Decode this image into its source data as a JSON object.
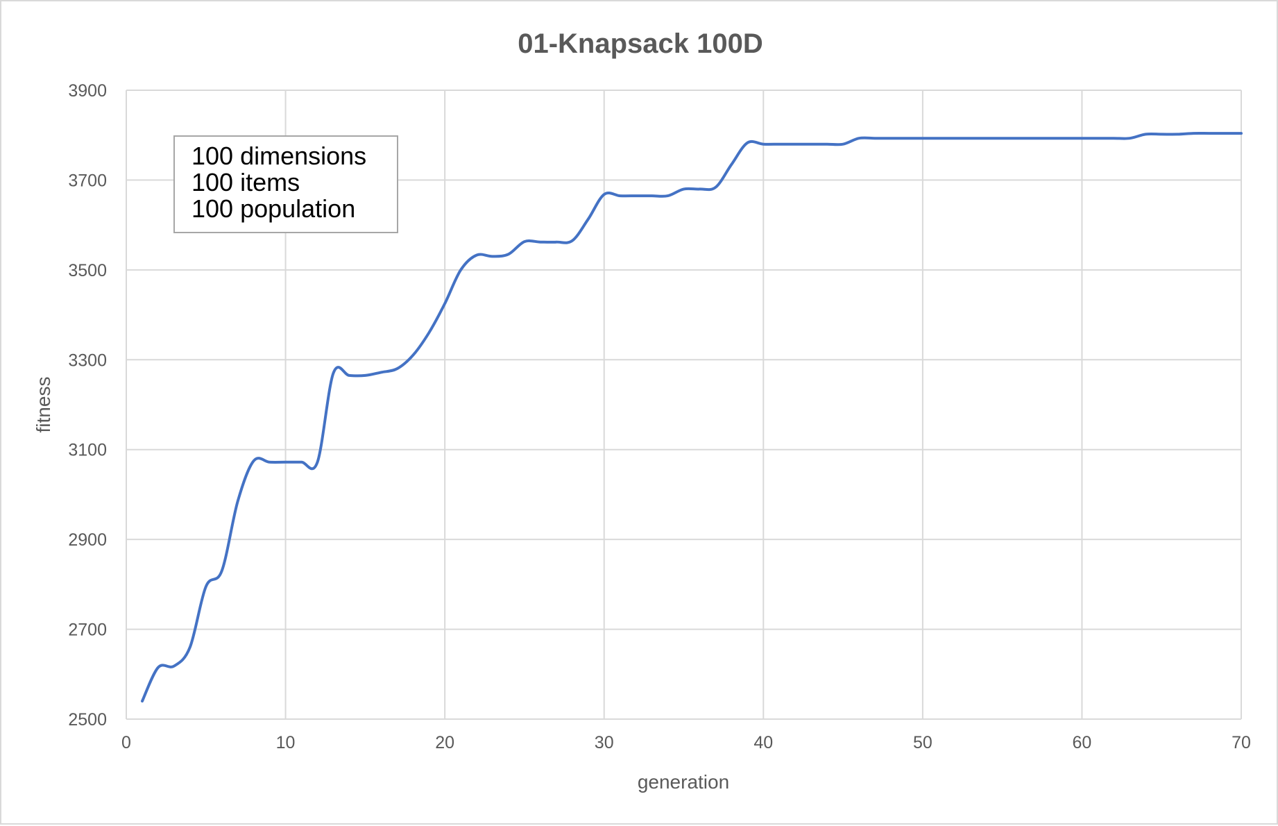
{
  "chart_data": {
    "type": "line",
    "title": "01-Knapsack 100D",
    "xlabel": "generation",
    "ylabel": "fitness",
    "xlim": [
      0,
      70
    ],
    "ylim": [
      2500,
      3900
    ],
    "xticks": [
      0,
      10,
      20,
      30,
      40,
      50,
      60,
      70
    ],
    "yticks": [
      2500,
      2700,
      2900,
      3100,
      3300,
      3500,
      3700,
      3900
    ],
    "grid": true,
    "legend": "none",
    "annotation_lines": [
      "100 dimensions",
      "100 items",
      "100 population"
    ],
    "series": [
      {
        "color": "#4472c4",
        "x": [
          1,
          2,
          3,
          4,
          5,
          6,
          7,
          8,
          9,
          10,
          11,
          12,
          13,
          14,
          15,
          16,
          17,
          18,
          19,
          20,
          21,
          22,
          23,
          24,
          25,
          26,
          27,
          28,
          29,
          30,
          31,
          32,
          33,
          34,
          35,
          36,
          37,
          38,
          39,
          40,
          41,
          42,
          43,
          44,
          45,
          46,
          47,
          48,
          49,
          50,
          51,
          52,
          53,
          54,
          55,
          56,
          57,
          58,
          59,
          60,
          61,
          62,
          63,
          64,
          65,
          66,
          67,
          68,
          69,
          70
        ],
        "y": [
          2540,
          2615,
          2618,
          2660,
          2795,
          2830,
          2985,
          3075,
          3072,
          3072,
          3072,
          3072,
          3270,
          3265,
          3265,
          3272,
          3280,
          3310,
          3360,
          3425,
          3500,
          3533,
          3530,
          3535,
          3563,
          3562,
          3562,
          3565,
          3613,
          3668,
          3665,
          3665,
          3665,
          3665,
          3680,
          3680,
          3684,
          3735,
          3783,
          3780,
          3780,
          3780,
          3780,
          3780,
          3780,
          3793,
          3793,
          3793,
          3793,
          3793,
          3793,
          3793,
          3793,
          3793,
          3793,
          3793,
          3793,
          3793,
          3793,
          3793,
          3793,
          3793,
          3793,
          3802,
          3802,
          3802,
          3804,
          3804,
          3804,
          3804
        ]
      }
    ]
  }
}
